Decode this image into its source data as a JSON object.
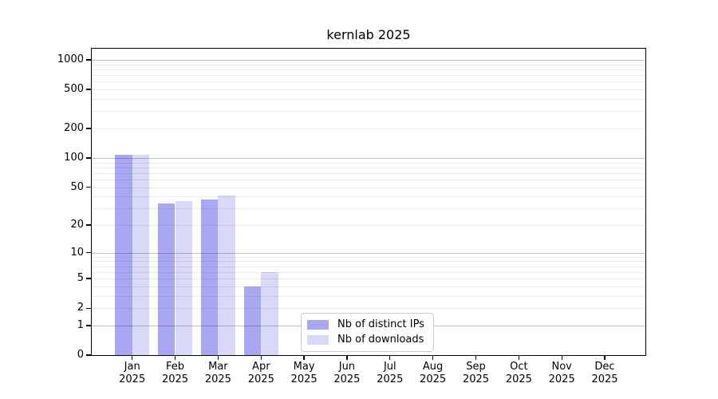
{
  "title": "kernlab 2025",
  "colors": {
    "ips": "#a8a8f2",
    "downloads": "#d8d8f8",
    "grid_major": "#c4c4c4",
    "grid_minor": "#ececec",
    "frame": "#000000",
    "background": "#ffffff"
  },
  "legend": {
    "items": [
      {
        "label": "Nb of distinct IPs",
        "color_key": "ips"
      },
      {
        "label": "Nb of downloads",
        "color_key": "downloads"
      }
    ]
  },
  "chart_data": {
    "type": "bar",
    "title": "kernlab 2025",
    "categories": [
      "Jan 2025",
      "Feb 2025",
      "Mar 2025",
      "Apr 2025",
      "May 2025",
      "Jun 2025",
      "Jul 2025",
      "Aug 2025",
      "Sep 2025",
      "Oct 2025",
      "Nov 2025",
      "Dec 2025"
    ],
    "series": [
      {
        "name": "Nb of distinct IPs",
        "color_key": "ips",
        "values": [
          107,
          34,
          37,
          4,
          0,
          0,
          0,
          0,
          0,
          0,
          0,
          0
        ]
      },
      {
        "name": "Nb of downloads",
        "color_key": "downloads",
        "values": [
          107,
          36,
          41,
          6,
          0,
          0,
          0,
          0,
          0,
          0,
          0,
          0
        ]
      }
    ],
    "y_ticks": [
      0,
      1,
      2,
      5,
      10,
      20,
      50,
      100,
      200,
      500,
      1000
    ],
    "y_scale": "log10(value+1)",
    "ylim": [
      0,
      1250
    ],
    "xlabel": "",
    "ylabel": "",
    "grid": true,
    "grid_major_at": [
      1,
      10,
      100,
      1000
    ],
    "legend_position": "bottom-center-inside"
  }
}
